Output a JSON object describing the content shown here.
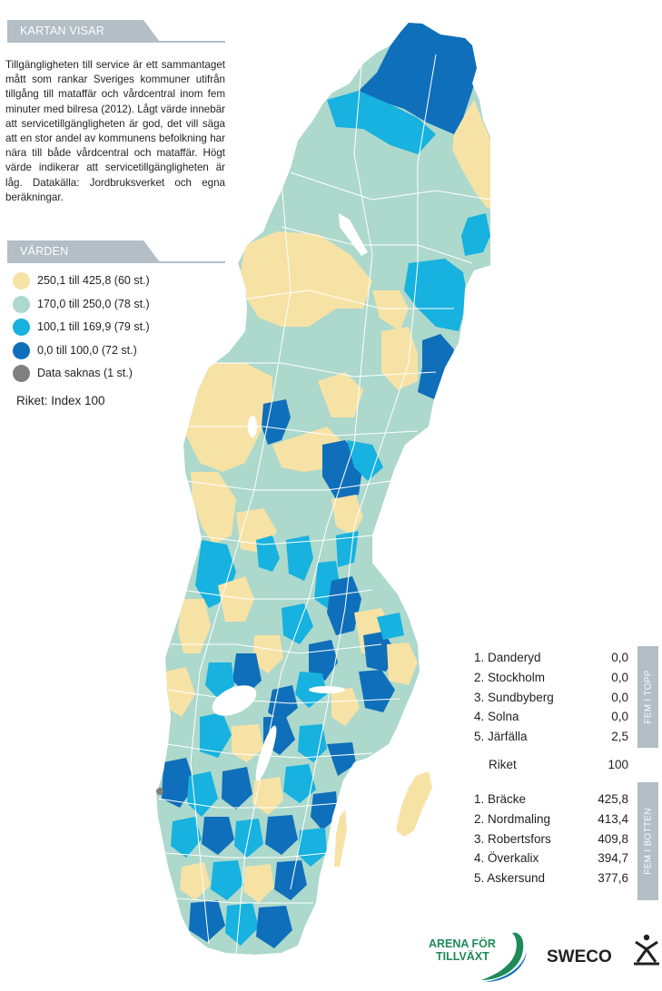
{
  "header": {
    "title": "KARTAN VISAR"
  },
  "description": "Tillgängligheten till service är ett sammantaget mått som rankar Sveriges kommuner utifrån tillgång till mataffär och vårdcentral inom fem minuter med bilresa (2012). Lågt värde innebär att servicetillgängligheten är god, det vill säga att en stor andel av kommunens befolkning har nära till både vårdcentral och mataffär. Högt värde indikerar att servicetillgängligheten är låg. Datakälla: Jordbruksverket och egna beräkningar.",
  "legend": {
    "title": "VÄRDEN",
    "items": [
      {
        "label": "250,1 till 425,8 (60 st.)",
        "color": "#f7e2a6"
      },
      {
        "label": "170,0 till 250,0 (78 st.)",
        "color": "#add8cc"
      },
      {
        "label": "100,1 till 169,9 (79 st.)",
        "color": "#17b2df"
      },
      {
        "label": "0,0 till 100,0 (72 st.)",
        "color": "#0f6fba"
      },
      {
        "label": "Data saknas (1 st.)",
        "color": "#808080"
      }
    ],
    "note": "Riket: Index 100"
  },
  "top_five": {
    "tab_label": "FEM I TOPP",
    "rows": [
      {
        "name": "1. Danderyd",
        "value": "0,0"
      },
      {
        "name": "2. Stockholm",
        "value": "0,0"
      },
      {
        "name": "3. Sundbyberg",
        "value": "0,0"
      },
      {
        "name": "4. Solna",
        "value": "0,0"
      },
      {
        "name": "5. Järfälla",
        "value": "2,5"
      }
    ]
  },
  "national": {
    "name": "Riket",
    "value": "100"
  },
  "bottom_five": {
    "tab_label": "FEM I BOTTEN",
    "rows": [
      {
        "name": "1. Bräcke",
        "value": "425,8"
      },
      {
        "name": "2. Nordmaling",
        "value": "413,4"
      },
      {
        "name": "3. Robertsfors",
        "value": "409,8"
      },
      {
        "name": "4. Överkalix",
        "value": "394,7"
      },
      {
        "name": "5. Askersund",
        "value": "377,6"
      }
    ]
  },
  "logos": {
    "arena": {
      "line1": "ARENA FÖR",
      "line2": "TILLVÄXT"
    },
    "sweco": {
      "text": "SWECO"
    }
  }
}
